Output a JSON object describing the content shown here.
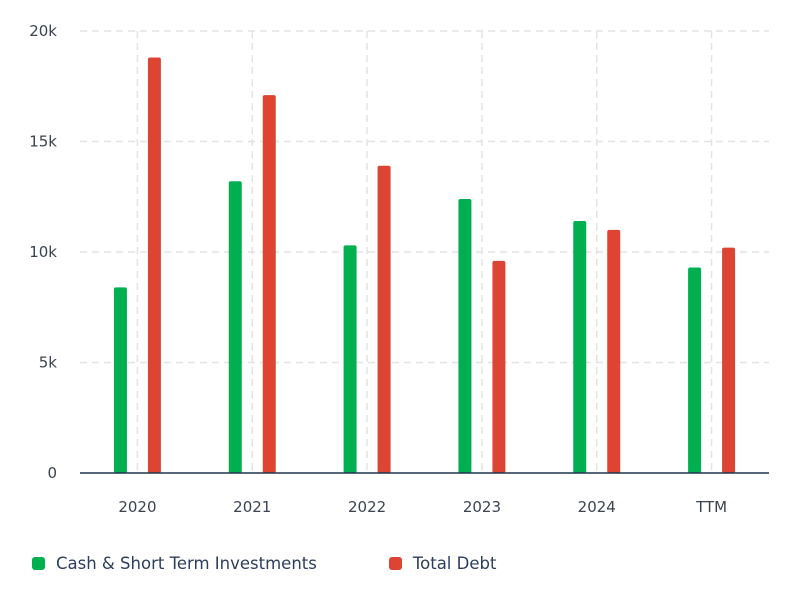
{
  "chart_data": {
    "type": "bar",
    "categories": [
      "2020",
      "2021",
      "2022",
      "2023",
      "2024",
      "TTM"
    ],
    "series": [
      {
        "name": "Cash & Short Term Investments",
        "color": "#00b050",
        "values": [
          8400,
          13200,
          10300,
          12400,
          11400,
          9300
        ]
      },
      {
        "name": "Total Debt",
        "color": "#dd4433",
        "values": [
          18800,
          17100,
          13900,
          9600,
          11000,
          10200
        ]
      }
    ],
    "ylim": [
      0,
      20000
    ],
    "y_ticks": [
      {
        "value": 0,
        "label": "0"
      },
      {
        "value": 5000,
        "label": "5k"
      },
      {
        "value": 10000,
        "label": "10k"
      },
      {
        "value": 15000,
        "label": "15k"
      },
      {
        "value": 20000,
        "label": "20k"
      }
    ],
    "grid": true,
    "legend_position": "bottom-left",
    "title": "",
    "xlabel": "",
    "ylabel": ""
  }
}
